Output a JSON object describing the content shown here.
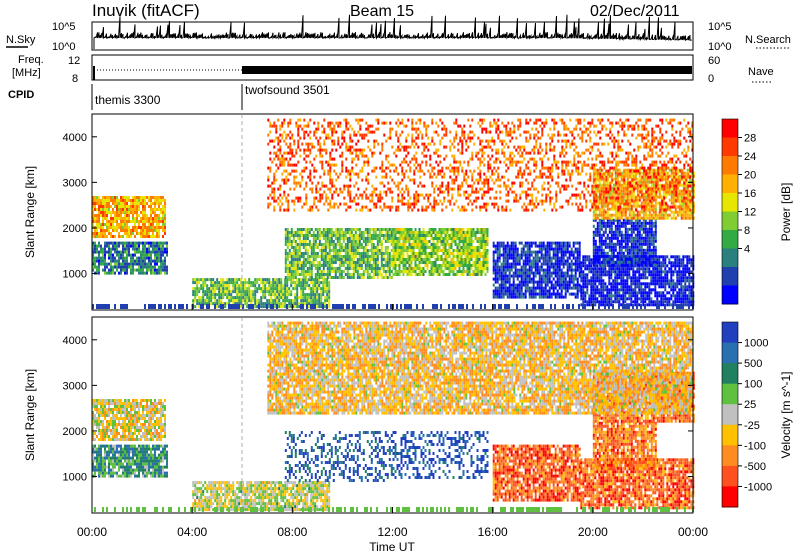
{
  "header": {
    "station": "Inuvik (fitACF)",
    "beam": "Beam 15",
    "date": "02/Dec/2011"
  },
  "panels": {
    "nsky": {
      "left_label": "N.Sky",
      "right_label": "N.Search",
      "left_ticks": [
        "10^5",
        "10^0"
      ],
      "right_ticks": [
        "10^5",
        "10^0"
      ]
    },
    "freq": {
      "label_line1": "Freq.",
      "label_line2": "[MHz]",
      "left_ticks": [
        "12",
        "8"
      ],
      "right_ticks": [
        "60",
        "0"
      ],
      "right_label": "Nave"
    },
    "cpid": {
      "label": "CPID",
      "modes": [
        {
          "name": "themis 3300",
          "start_hour": 0
        },
        {
          "name": "twofsound 3501",
          "start_hour": 6
        }
      ]
    }
  },
  "chart_data": [
    {
      "type": "heatmap",
      "name": "Power [dB]",
      "ylabel": "Slant Range [km]",
      "xlim": [
        0,
        24
      ],
      "ylim": [
        200,
        4500
      ],
      "yticks": [
        1000,
        2000,
        3000,
        4000
      ],
      "colorbar": {
        "label": "Power [dB]",
        "ticks": [
          "28",
          "24",
          "20",
          "16",
          "12",
          "8",
          "4"
        ],
        "colors": [
          "#ff0000",
          "#ff3a00",
          "#ff7a00",
          "#ffb000",
          "#e6e600",
          "#7fcc33",
          "#33aa44",
          "#2a7f7f",
          "#2040b0",
          "#0000ff"
        ]
      },
      "regions": [
        {
          "t": [
            0.0,
            3.0
          ],
          "r": [
            1000,
            1700
          ],
          "level": 0.75
        },
        {
          "t": [
            0.0,
            2.9
          ],
          "r": [
            1800,
            2700
          ],
          "level": 0.35
        },
        {
          "t": [
            4.0,
            9.5
          ],
          "r": [
            280,
            900
          ],
          "level": 0.6
        },
        {
          "t": [
            7.7,
            12.0
          ],
          "r": [
            900,
            2000
          ],
          "level": 0.6
        },
        {
          "t": [
            12.0,
            15.8
          ],
          "r": [
            1000,
            2000
          ],
          "level": 0.55
        },
        {
          "t": [
            16.0,
            19.5
          ],
          "r": [
            500,
            1700
          ],
          "level": 0.9
        },
        {
          "t": [
            19.5,
            24.0
          ],
          "r": [
            300,
            1400
          ],
          "level": 0.95
        },
        {
          "t": [
            20.0,
            22.5
          ],
          "r": [
            1200,
            2200
          ],
          "level": 0.9
        },
        {
          "t": [
            20.0,
            24.0
          ],
          "r": [
            2200,
            3300
          ],
          "level": 0.35
        },
        {
          "t": [
            7.0,
            24.0
          ],
          "r": [
            2400,
            4400
          ],
          "level": 0.2
        }
      ]
    },
    {
      "type": "heatmap",
      "name": "Velocity [m s^-1]",
      "ylabel": "Slant Range [km]",
      "xlabel": "Time UT",
      "xlim": [
        0,
        24
      ],
      "ylim": [
        200,
        4500
      ],
      "xticks": [
        "00:00",
        "04:00",
        "08:00",
        "12:00",
        "16:00",
        "20:00",
        "00:00"
      ],
      "yticks": [
        1000,
        2000,
        3000,
        4000
      ],
      "colorbar": {
        "label": "Velocity [m s^-1]",
        "ticks": [
          "1000",
          "500",
          "100",
          "25",
          "-25",
          "-100",
          "-500",
          "-1000"
        ],
        "colors": [
          "#2040c0",
          "#2a70b0",
          "#208060",
          "#60c040",
          "#c0c0c0",
          "#ffc000",
          "#ff8c20",
          "#ff5020",
          "#ff0000"
        ]
      },
      "regions": [
        {
          "t": [
            0.0,
            3.0
          ],
          "r": [
            1000,
            1700
          ],
          "level": 0.3
        },
        {
          "t": [
            0.0,
            2.9
          ],
          "r": [
            1800,
            2700
          ],
          "level": 0.55
        },
        {
          "t": [
            4.0,
            9.5
          ],
          "r": [
            280,
            900
          ],
          "level": 0.5
        },
        {
          "t": [
            7.7,
            12.0
          ],
          "r": [
            900,
            2000
          ],
          "level": 0.12
        },
        {
          "t": [
            12.0,
            15.8
          ],
          "r": [
            1000,
            2000
          ],
          "level": 0.08
        },
        {
          "t": [
            16.0,
            19.5
          ],
          "r": [
            500,
            1700
          ],
          "level": 0.8
        },
        {
          "t": [
            19.5,
            24.0
          ],
          "r": [
            300,
            1400
          ],
          "level": 0.8
        },
        {
          "t": [
            20.0,
            22.5
          ],
          "r": [
            1200,
            2200
          ],
          "level": 0.75
        },
        {
          "t": [
            20.0,
            24.0
          ],
          "r": [
            2200,
            3300
          ],
          "level": 0.78
        },
        {
          "t": [
            7.0,
            24.0
          ],
          "r": [
            2400,
            4400
          ],
          "level": 0.6
        }
      ]
    }
  ]
}
